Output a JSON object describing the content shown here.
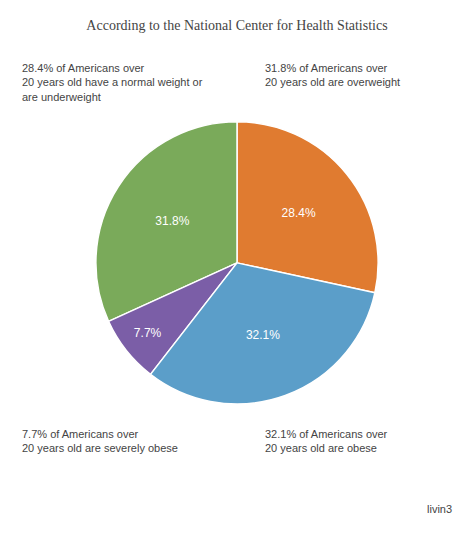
{
  "chart_data": {
    "type": "pie",
    "title": "According to the National Center for Health Statistics",
    "values": [
      28.4,
      31.8,
      7.7,
      32.1
    ],
    "value_labels": [
      "28.4%",
      "31.8%",
      "7.7%",
      "32.1%"
    ],
    "colors": [
      "#e07b30",
      "#7aaa5a",
      "#7b5ea7",
      "#5b9ec9"
    ],
    "data_labels": true,
    "annotations": [
      "28.4% of Americans over\n20 years old have a normal weight or\nare underweight",
      "31.8% of Americans over\n20 years old are overweight",
      "7.7% of Americans over\n20 years old are severely obese",
      "32.1% of Americans over\n20 years old are obese",
      "livin3"
    ]
  }
}
